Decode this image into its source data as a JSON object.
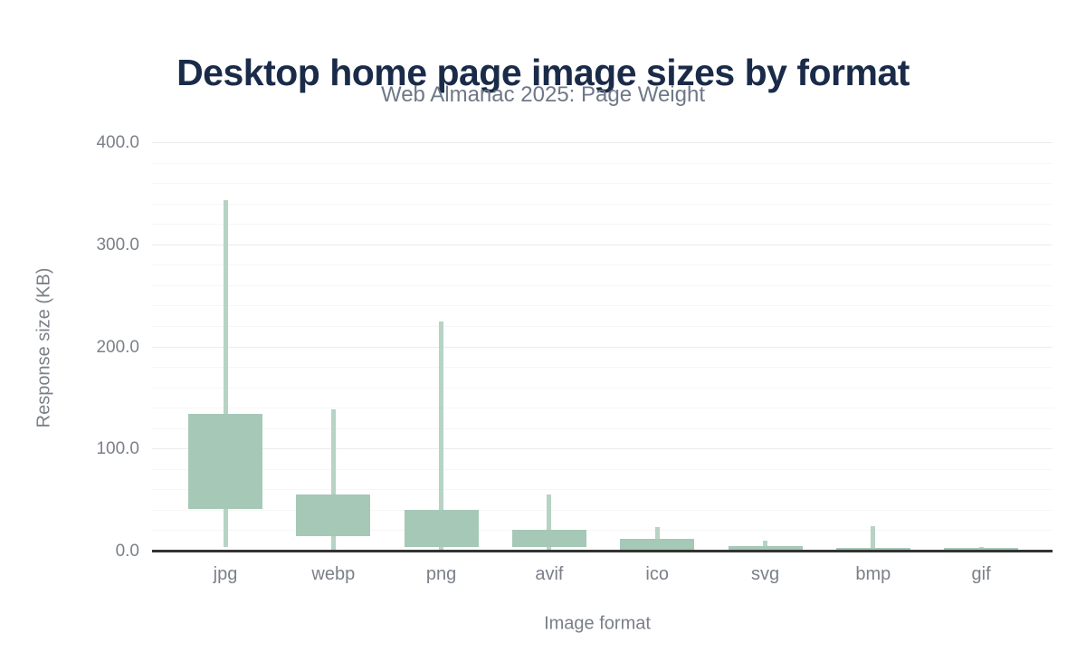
{
  "header": {
    "title": "Desktop home page image sizes by format",
    "subtitle": "Web Almanac 2025: Page Weight"
  },
  "chart_data": {
    "type": "box",
    "title": "Desktop home page image sizes by format",
    "subtitle": "Web Almanac 2025: Page Weight",
    "xlabel": "Image format",
    "ylabel": "Response size (KB)",
    "ylim": [
      0,
      400
    ],
    "yticks": [
      0,
      100,
      200,
      300,
      400
    ],
    "ytick_labels": [
      "0.0",
      "100.0",
      "200.0",
      "300.0",
      "400.0"
    ],
    "minor_grid_step": 20,
    "grid": "horizontal",
    "legend": "none",
    "categories": [
      "jpg",
      "webp",
      "png",
      "avif",
      "ico",
      "svg",
      "bmp",
      "gif"
    ],
    "boxes": [
      {
        "format": "jpg",
        "min": 4.4,
        "p25": 42,
        "p75": 135,
        "max": 344
      },
      {
        "format": "webp",
        "min": 1.5,
        "p25": 15,
        "p75": 56,
        "max": 139
      },
      {
        "format": "png",
        "min": 1.0,
        "p25": 4.4,
        "p75": 41,
        "max": 225
      },
      {
        "format": "avif",
        "min": 1.3,
        "p25": 4.4,
        "p75": 21,
        "max": 56
      },
      {
        "format": "ico",
        "min": 0.5,
        "p25": 1.2,
        "p75": 12,
        "max": 24
      },
      {
        "format": "svg",
        "min": 0.7,
        "p25": 2.0,
        "p75": 5.5,
        "max": 11
      },
      {
        "format": "bmp",
        "min": 0.3,
        "p25": 1.0,
        "p75": 3.5,
        "max": 25
      },
      {
        "format": "gif",
        "min": 0.2,
        "p25": 1.0,
        "p75": 3.5,
        "max": 4.5
      }
    ],
    "colors": {
      "box_fill": "#a5c8b7",
      "whisker_fill": "#b6d3c4",
      "axis_line": "#333333",
      "major_grid": "#ececec",
      "minor_grid": "#f6f6f6",
      "title": "#1a2b49",
      "subtitle": "#6e7887",
      "tick_text": "#7b8088"
    }
  }
}
